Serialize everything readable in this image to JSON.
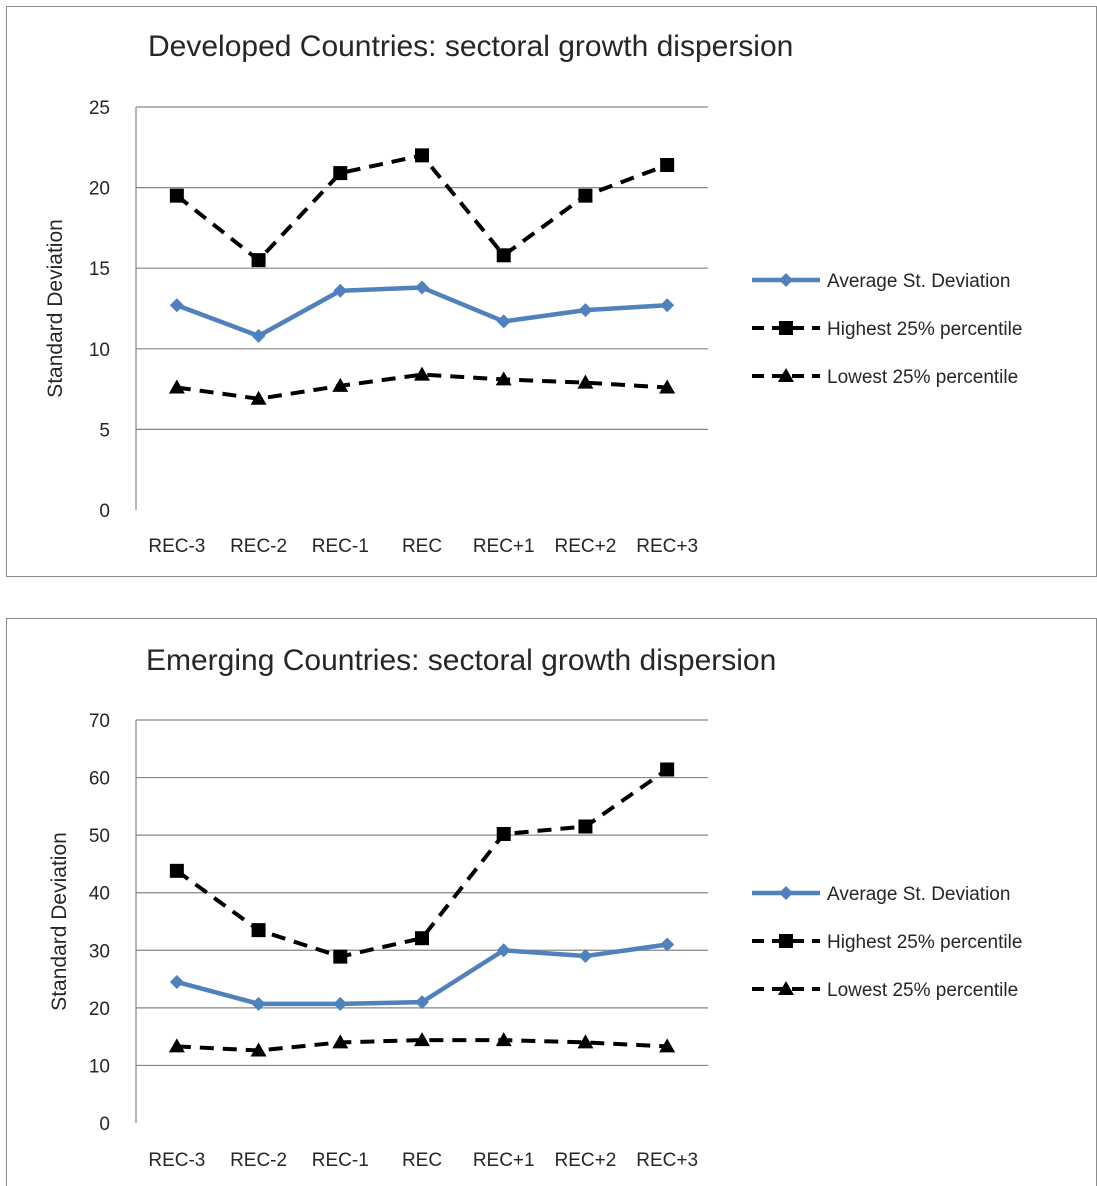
{
  "chart_data": [
    {
      "type": "line",
      "title": "Developed Countries: sectoral growth dispersion",
      "xlabel": "",
      "ylabel": "Standard Deviation",
      "ylim": [
        0,
        25
      ],
      "yticks": [
        0,
        5,
        10,
        15,
        20,
        25
      ],
      "categories": [
        "REC-3",
        "REC-2",
        "REC-1",
        "REC",
        "REC+1",
        "REC+2",
        "REC+3"
      ],
      "grid": true,
      "legend_position": "right",
      "series": [
        {
          "name": "Average St. Deviation",
          "values": [
            12.7,
            10.8,
            13.6,
            13.8,
            11.7,
            12.4,
            12.7
          ],
          "color": "#4f81bd",
          "dash": "solid",
          "marker": "diamond"
        },
        {
          "name": "Highest 25% percentile",
          "values": [
            19.5,
            15.5,
            20.9,
            22.0,
            15.8,
            19.5,
            21.4
          ],
          "color": "#000000",
          "dash": "dashed",
          "marker": "square"
        },
        {
          "name": "Lowest 25% percentile",
          "values": [
            7.6,
            6.9,
            7.7,
            8.4,
            8.1,
            7.9,
            7.6
          ],
          "color": "#000000",
          "dash": "dashed",
          "marker": "triangle"
        }
      ]
    },
    {
      "type": "line",
      "title": "Emerging Countries: sectoral growth dispersion",
      "xlabel": "",
      "ylabel": "Standard Deviation",
      "ylim": [
        0,
        70
      ],
      "yticks": [
        0,
        10,
        20,
        30,
        40,
        50,
        60,
        70
      ],
      "categories": [
        "REC-3",
        "REC-2",
        "REC-1",
        "REC",
        "REC+1",
        "REC+2",
        "REC+3"
      ],
      "grid": true,
      "legend_position": "right",
      "series": [
        {
          "name": "Average St. Deviation",
          "values": [
            24.5,
            20.7,
            20.7,
            21.0,
            30.0,
            29.0,
            31.0
          ],
          "color": "#4f81bd",
          "dash": "solid",
          "marker": "diamond"
        },
        {
          "name": "Highest 25% percentile",
          "values": [
            43.8,
            33.5,
            28.9,
            32.1,
            50.2,
            51.5,
            61.4
          ],
          "color": "#000000",
          "dash": "dashed",
          "marker": "square"
        },
        {
          "name": "Lowest 25% percentile",
          "values": [
            13.3,
            12.6,
            14.0,
            14.4,
            14.4,
            14.0,
            13.3
          ],
          "color": "#000000",
          "dash": "dashed",
          "marker": "triangle"
        }
      ]
    }
  ]
}
